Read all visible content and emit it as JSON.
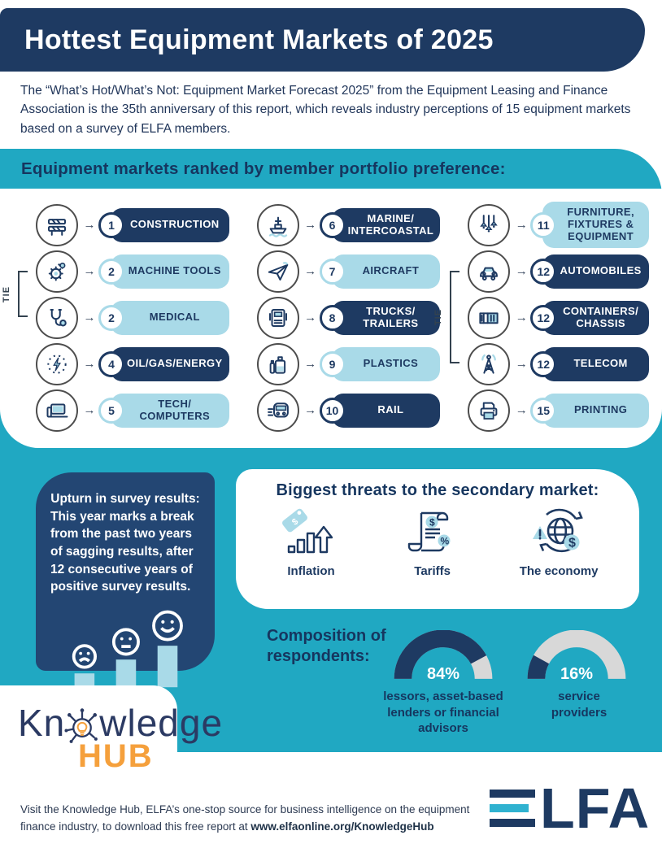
{
  "colors": {
    "navy": "#1e3a62",
    "teal": "#20a8c2",
    "light_blue": "#a9dae8",
    "gray": "#d8d8d8",
    "orange": "#f5a03c"
  },
  "header": {
    "title": "Hottest Equipment Markets of 2025"
  },
  "intro": {
    "text": "The “What’s Hot/What’s Not: Equipment Market Forecast 2025” from the Equipment Leasing and Finance Association is the 35th anniversary of this report, which reveals industry perceptions of 15 equipment markets based on a survey of ELFA members."
  },
  "ranking": {
    "title": "Equipment markets ranked by member portfolio preference:",
    "tie_label": "TIE",
    "columns": [
      {
        "tie": {
          "from": 1,
          "to": 2
        },
        "items": [
          {
            "rank": "1",
            "label": "CONSTRUCTION",
            "variant": "dark",
            "icon": "construction-icon"
          },
          {
            "rank": "2",
            "label": "MACHINE TOOLS",
            "variant": "light",
            "icon": "machine-tools-icon"
          },
          {
            "rank": "2",
            "label": "MEDICAL",
            "variant": "light",
            "icon": "medical-icon"
          },
          {
            "rank": "4",
            "label": "OIL/GAS/ENERGY",
            "variant": "dark",
            "icon": "energy-icon"
          },
          {
            "rank": "5",
            "label": "TECH/\nCOMPUTERS",
            "variant": "light",
            "icon": "computers-icon"
          }
        ]
      },
      {
        "items": [
          {
            "rank": "6",
            "label": "MARINE/\nINTERCOASTAL",
            "variant": "dark",
            "icon": "marine-icon"
          },
          {
            "rank": "7",
            "label": "AIRCRAFT",
            "variant": "light",
            "icon": "aircraft-icon"
          },
          {
            "rank": "8",
            "label": "TRUCKS/\nTRAILERS",
            "variant": "dark",
            "icon": "trucks-icon"
          },
          {
            "rank": "9",
            "label": "PLASTICS",
            "variant": "light",
            "icon": "plastics-icon"
          },
          {
            "rank": "10",
            "label": "RAIL",
            "variant": "dark",
            "icon": "rail-icon"
          }
        ]
      },
      {
        "tie": {
          "from": 1,
          "to": 3
        },
        "items": [
          {
            "rank": "11",
            "label": "FURNITURE,\nFIXTURES &\nEQUIPMENT",
            "variant": "light",
            "icon": "furniture-icon"
          },
          {
            "rank": "12",
            "label": "AUTOMOBILES",
            "variant": "dark",
            "icon": "automobiles-icon"
          },
          {
            "rank": "12",
            "label": "CONTAINERS/\nCHASSIS",
            "variant": "dark",
            "icon": "containers-icon"
          },
          {
            "rank": "12",
            "label": "TELECOM",
            "variant": "dark",
            "icon": "telecom-icon"
          },
          {
            "rank": "15",
            "label": "PRINTING",
            "variant": "light",
            "icon": "printing-icon"
          }
        ]
      }
    ]
  },
  "upturn": {
    "heading": "Upturn in survey results:",
    "body": "This year marks a break from the past two years of sagging results, after 12 consecutive years of positive survey results."
  },
  "threats": {
    "title": "Biggest threats to the secondary market:",
    "items": [
      {
        "label": "Inflation",
        "icon": "inflation-icon"
      },
      {
        "label": "Tariffs",
        "icon": "tariffs-icon"
      },
      {
        "label": "The economy",
        "icon": "economy-icon"
      }
    ]
  },
  "composition": {
    "heading": "Composition of\nrespondents:",
    "gauges": [
      {
        "value": "84%",
        "pct": 84,
        "label": "lessors, asset-based\nlenders or financial\nadvisors"
      },
      {
        "value": "16%",
        "pct": 16,
        "label": "service\nproviders"
      }
    ]
  },
  "logo": {
    "knowledge_prefix": "Kn",
    "knowledge_suffix": "wledge",
    "hub": "HUB"
  },
  "footer": {
    "text": "Visit the Knowledge Hub, ELFA’s one-stop source for business intelligence on the equipment finance industry, to download this free report at ",
    "url": "www.elfaonline.org/KnowledgeHub"
  },
  "elfa": {
    "letters": "LFA"
  }
}
